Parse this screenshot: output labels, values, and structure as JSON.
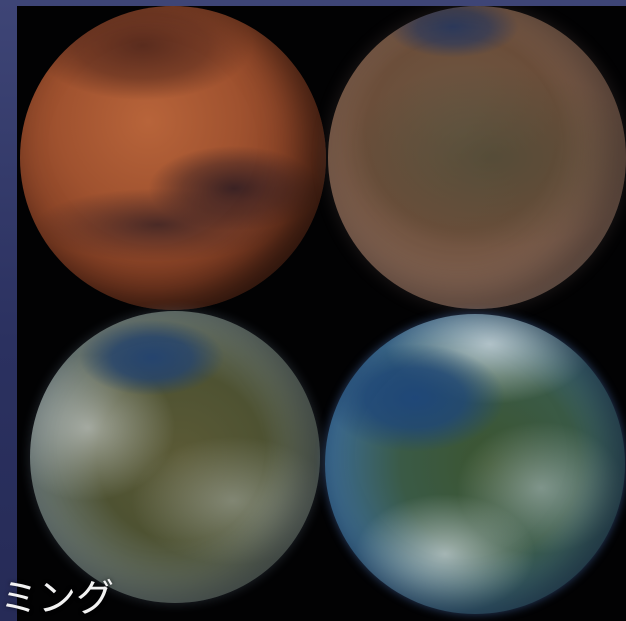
{
  "caption": "ミング",
  "image": {
    "panels": [
      {
        "name": "mars-barren"
      },
      {
        "name": "mars-thin-atmosphere"
      },
      {
        "name": "mars-oceans-forming"
      },
      {
        "name": "mars-terraformed"
      }
    ]
  },
  "colors": {
    "slide_background": "#2e3463",
    "caption_text": "#f2f2f2",
    "photo_background": "#020203"
  }
}
